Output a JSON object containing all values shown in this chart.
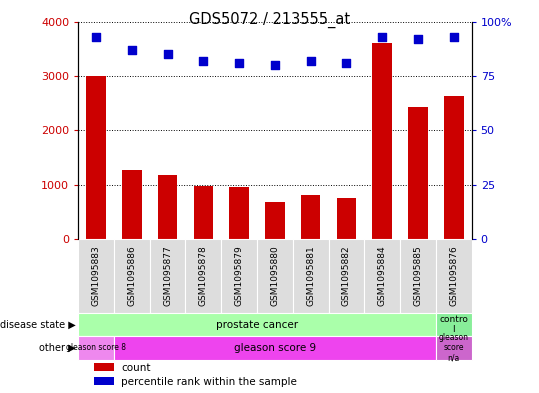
{
  "title": "GDS5072 / 213555_at",
  "samples": [
    "GSM1095883",
    "GSM1095886",
    "GSM1095877",
    "GSM1095878",
    "GSM1095879",
    "GSM1095880",
    "GSM1095881",
    "GSM1095882",
    "GSM1095884",
    "GSM1095885",
    "GSM1095876"
  ],
  "counts": [
    3000,
    1270,
    1175,
    970,
    960,
    680,
    820,
    760,
    3600,
    2430,
    2640
  ],
  "percentiles": [
    93,
    87,
    85,
    82,
    81,
    80,
    82,
    81,
    93,
    92,
    93
  ],
  "ylim_left": [
    0,
    4000
  ],
  "ylim_right": [
    0,
    100
  ],
  "yticks_left": [
    0,
    1000,
    2000,
    3000,
    4000
  ],
  "yticks_right": [
    0,
    25,
    50,
    75,
    100
  ],
  "bar_color": "#cc0000",
  "dot_color": "#0000cc",
  "pc_color": "#aaffaa",
  "ctrl_color": "#88ee99",
  "gleason8_color": "#ee88ee",
  "gleason9_color": "#ee44ee",
  "gleasonNA_color": "#cc66cc",
  "xticklabel_bg": "#dddddd",
  "legend_count_label": "count",
  "legend_pct_label": "percentile rank within the sample",
  "label_left_ds": "disease state",
  "label_left_other": "other"
}
